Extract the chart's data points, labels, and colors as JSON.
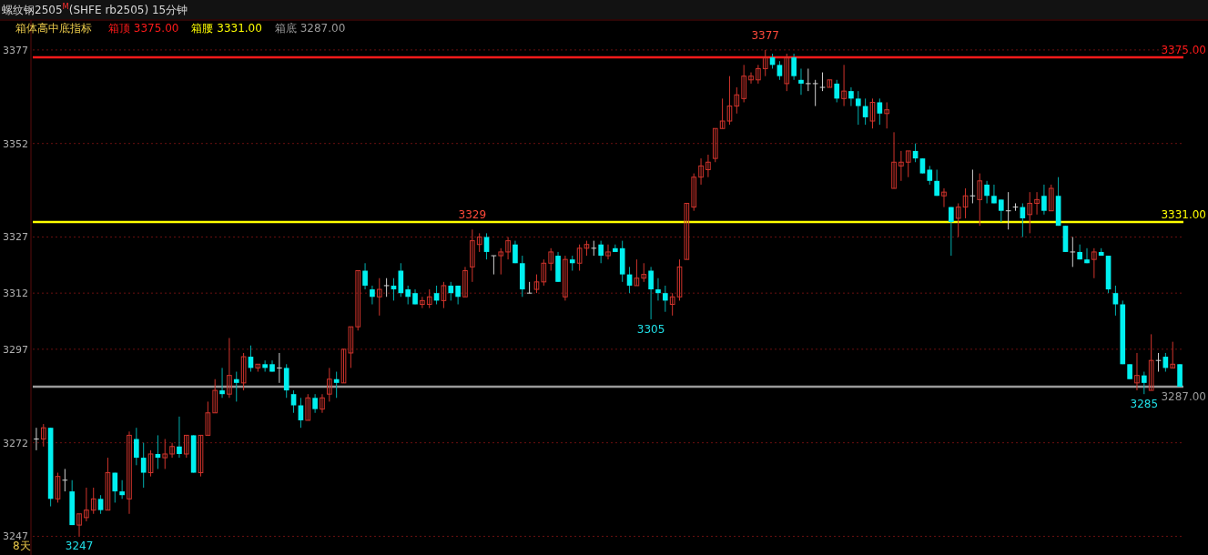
{
  "chart_data": {
    "type": "candlestick",
    "title": "螺纹钢2505$^{M}$(SHFE rb2505)  15分钟",
    "subtitle": "箱体高中底指标",
    "categories": [
      null,
      null,
      null,
      null,
      null,
      null,
      null,
      null,
      null,
      null,
      null,
      null,
      null,
      null,
      null,
      null,
      null,
      null,
      null,
      null,
      null,
      null,
      null,
      null,
      null,
      null,
      null,
      null,
      null,
      null,
      null,
      null,
      null,
      null,
      null,
      null,
      null,
      null,
      null,
      null,
      null,
      null,
      null,
      null,
      null,
      null,
      null,
      null,
      null,
      null,
      null,
      null,
      null,
      null,
      null,
      null,
      null,
      null,
      null,
      null,
      null,
      null,
      null,
      null,
      null,
      null,
      null,
      null,
      null,
      null,
      null,
      null,
      null,
      null,
      null,
      null,
      null,
      null,
      null,
      null,
      null,
      null,
      null,
      null,
      null,
      null,
      null,
      null,
      null,
      null,
      null,
      null,
      null,
      null,
      null,
      null,
      null,
      null,
      null,
      null,
      null,
      null,
      null,
      null,
      null,
      null,
      null,
      null,
      null,
      null,
      null,
      null,
      null,
      null,
      null,
      null,
      null,
      null,
      null,
      null,
      null,
      null,
      null,
      null,
      null,
      null,
      null,
      null,
      null,
      null,
      null,
      null,
      null,
      null,
      null,
      null,
      null,
      null,
      null,
      null,
      null,
      null,
      null,
      null,
      null,
      null,
      null,
      null,
      null,
      null,
      null,
      null,
      null,
      null,
      null,
      null,
      null,
      null,
      null,
      null,
      null
    ],
    "ohlc": [
      [
        3273,
        3276,
        3270,
        3273
      ],
      [
        3273,
        3277,
        3271,
        3276
      ],
      [
        3276,
        3276,
        3255,
        3257
      ],
      [
        3257,
        3264,
        3256,
        3263
      ],
      [
        3262,
        3265,
        3259,
        3262
      ],
      [
        3259,
        3262,
        3250,
        3250
      ],
      [
        3250,
        3253,
        3247,
        3253
      ],
      [
        3252,
        3260,
        3251,
        3254
      ],
      [
        3254,
        3260,
        3253,
        3257
      ],
      [
        3257,
        3258,
        3253,
        3254
      ],
      [
        3254,
        3268,
        3254,
        3264
      ],
      [
        3264,
        3264,
        3256,
        3259
      ],
      [
        3259,
        3262,
        3257,
        3258
      ],
      [
        3257,
        3275,
        3253,
        3274
      ],
      [
        3273,
        3276,
        3266,
        3268
      ],
      [
        3268,
        3272,
        3260,
        3264
      ],
      [
        3264,
        3270,
        3263,
        3269
      ],
      [
        3269,
        3274,
        3265,
        3268
      ],
      [
        3268,
        3273,
        3265,
        3269
      ],
      [
        3269,
        3272,
        3268,
        3271
      ],
      [
        3271,
        3279,
        3268,
        3269
      ],
      [
        3269,
        3274,
        3268,
        3274
      ],
      [
        3274,
        3274,
        3264,
        3264
      ],
      [
        3264,
        3274,
        3263,
        3274
      ],
      [
        3274,
        3283,
        3274,
        3280
      ],
      [
        3280,
        3289,
        3280,
        3286
      ],
      [
        3286,
        3292,
        3284,
        3285
      ],
      [
        3285,
        3300,
        3284,
        3290
      ],
      [
        3289,
        3291,
        3283,
        3288
      ],
      [
        3288,
        3296,
        3286,
        3295
      ],
      [
        3295,
        3298,
        3291,
        3292
      ],
      [
        3292,
        3293,
        3291,
        3293
      ],
      [
        3293,
        3294,
        3291,
        3292
      ],
      [
        3293,
        3294,
        3291,
        3291
      ],
      [
        3292,
        3296,
        3288,
        3292
      ],
      [
        3292,
        3293,
        3284,
        3286
      ],
      [
        3285,
        3286,
        3280,
        3282
      ],
      [
        3282,
        3284,
        3276,
        3278
      ],
      [
        3278,
        3285,
        3278,
        3284
      ],
      [
        3284,
        3285,
        3280,
        3281
      ],
      [
        3281,
        3285,
        3280,
        3284
      ],
      [
        3285,
        3292,
        3283,
        3289
      ],
      [
        3289,
        3291,
        3284,
        3288
      ],
      [
        3288,
        3297,
        3288,
        3297
      ],
      [
        3296,
        3303,
        3292,
        3303
      ],
      [
        3303,
        3318,
        3302,
        3318
      ],
      [
        3318,
        3320,
        3313,
        3314
      ],
      [
        3313,
        3314,
        3309,
        3311
      ],
      [
        3311,
        3316,
        3306,
        3313
      ],
      [
        3314,
        3316,
        3311,
        3314
      ],
      [
        3314,
        3316,
        3310,
        3313
      ],
      [
        3318,
        3320,
        3311,
        3312
      ],
      [
        3313,
        3314,
        3309,
        3311
      ],
      [
        3312,
        3313,
        3309,
        3309
      ],
      [
        3309,
        3311,
        3308,
        3310
      ],
      [
        3309,
        3313,
        3308,
        3311
      ],
      [
        3312,
        3314,
        3309,
        3310
      ],
      [
        3310,
        3315,
        3308,
        3314
      ],
      [
        3314,
        3315,
        3310,
        3312
      ],
      [
        3314,
        3314,
        3309,
        3311
      ],
      [
        3311,
        3319,
        3311,
        3318
      ],
      [
        3319,
        3329,
        3315,
        3326
      ],
      [
        3325,
        3328,
        3323,
        3327
      ],
      [
        3327,
        3328,
        3321,
        3323
      ],
      [
        3322,
        3322,
        3317,
        3322
      ],
      [
        3322,
        3324,
        3317,
        3323
      ],
      [
        3323,
        3327,
        3321,
        3326
      ],
      [
        3325,
        3326,
        3320,
        3320
      ],
      [
        3320,
        3322,
        3311,
        3313
      ],
      [
        3312,
        3315,
        3312,
        3312
      ],
      [
        3313,
        3317,
        3312,
        3315
      ],
      [
        3315,
        3321,
        3314,
        3320
      ],
      [
        3320,
        3324,
        3318,
        3323
      ],
      [
        3322,
        3323,
        3315,
        3315
      ],
      [
        3311,
        3322,
        3310,
        3321
      ],
      [
        3321,
        3322,
        3318,
        3320
      ],
      [
        3320,
        3325,
        3318,
        3324
      ],
      [
        3324,
        3326,
        3322,
        3325
      ],
      [
        3324,
        3326,
        3322,
        3324
      ],
      [
        3325,
        3326,
        3320,
        3322
      ],
      [
        3322,
        3325,
        3321,
        3323
      ],
      [
        3324,
        3325,
        3323,
        3323
      ],
      [
        3324,
        3326,
        3315,
        3317
      ],
      [
        3317,
        3319,
        3312,
        3314
      ],
      [
        3314,
        3321,
        3314,
        3316
      ],
      [
        3316,
        3320,
        3315,
        3317
      ],
      [
        3318,
        3319,
        3305,
        3313
      ],
      [
        3313,
        3316,
        3310,
        3312
      ],
      [
        3312,
        3314,
        3307,
        3310
      ],
      [
        3309,
        3312,
        3306,
        3311
      ],
      [
        3311,
        3321,
        3310,
        3319
      ],
      [
        3321,
        3336,
        3321,
        3336
      ],
      [
        3335,
        3344,
        3334,
        3343
      ],
      [
        3343,
        3348,
        3341,
        3346
      ],
      [
        3345,
        3349,
        3343,
        3347
      ],
      [
        3348,
        3356,
        3347,
        3356
      ],
      [
        3356,
        3364,
        3356,
        3358
      ],
      [
        3358,
        3370,
        3357,
        3362
      ],
      [
        3362,
        3367,
        3360,
        3365
      ],
      [
        3364,
        3373,
        3363,
        3370
      ],
      [
        3369,
        3371,
        3368,
        3370
      ],
      [
        3369,
        3373,
        3368,
        3372
      ],
      [
        3372,
        3377,
        3370,
        3375
      ],
      [
        3375,
        3376,
        3372,
        3373
      ],
      [
        3373,
        3374,
        3369,
        3370
      ],
      [
        3368,
        3376,
        3366,
        3375
      ],
      [
        3375,
        3376,
        3369,
        3370
      ],
      [
        3369,
        3372,
        3365,
        3368
      ],
      [
        3368,
        3372,
        3366,
        3368
      ],
      [
        3368,
        3369,
        3362,
        3368
      ],
      [
        3367,
        3371,
        3366,
        3367
      ],
      [
        3367,
        3369,
        3367,
        3369
      ],
      [
        3368,
        3369,
        3363,
        3364
      ],
      [
        3364,
        3373,
        3362,
        3366
      ],
      [
        3366,
        3367,
        3362,
        3364
      ],
      [
        3364,
        3366,
        3357,
        3362
      ],
      [
        3362,
        3364,
        3357,
        3359
      ],
      [
        3358,
        3364,
        3356,
        3363
      ],
      [
        3363,
        3364,
        3357,
        3360
      ],
      [
        3360,
        3363,
        3356,
        3361
      ],
      [
        3340,
        3355,
        3340,
        3347
      ],
      [
        3346,
        3350,
        3342,
        3347
      ],
      [
        3347,
        3350,
        3343,
        3350
      ],
      [
        3350,
        3352,
        3347,
        3348
      ],
      [
        3348,
        3348,
        3344,
        3344
      ],
      [
        3345,
        3346,
        3341,
        3342
      ],
      [
        3342,
        3345,
        3338,
        3338
      ],
      [
        3338,
        3340,
        3335,
        3339
      ],
      [
        3335,
        3335,
        3322,
        3331
      ],
      [
        3332,
        3336,
        3327,
        3335
      ],
      [
        3335,
        3340,
        3332,
        3338
      ],
      [
        3338,
        3345,
        3336,
        3338
      ],
      [
        3337,
        3344,
        3330,
        3342
      ],
      [
        3341,
        3342,
        3336,
        3338
      ],
      [
        3338,
        3341,
        3336,
        3336
      ],
      [
        3337,
        3337,
        3331,
        3334
      ],
      [
        3334,
        3339,
        3329,
        3334
      ],
      [
        3335,
        3336,
        3334,
        3335
      ],
      [
        3335,
        3336,
        3327,
        3332
      ],
      [
        3333,
        3339,
        3328,
        3336
      ],
      [
        3336,
        3339,
        3333,
        3337
      ],
      [
        3338,
        3341,
        3333,
        3334
      ],
      [
        3334,
        3341,
        3334,
        3340
      ],
      [
        3338,
        3343,
        3330,
        3330
      ],
      [
        3330,
        3330,
        3323,
        3323
      ],
      [
        3323,
        3327,
        3319,
        3323
      ],
      [
        3323,
        3325,
        3321,
        3321
      ],
      [
        3321,
        3324,
        3320,
        3320
      ],
      [
        3321,
        3324,
        3316,
        3323
      ],
      [
        3323,
        3324,
        3322,
        3322
      ],
      [
        3322,
        3322,
        3312,
        3313
      ],
      [
        3312,
        3314,
        3306,
        3309
      ],
      [
        3309,
        3310,
        3293,
        3293
      ],
      [
        3293,
        3293,
        3289,
        3289
      ],
      [
        3288,
        3296,
        3286,
        3290
      ],
      [
        3290,
        3291,
        3285,
        3288
      ],
      [
        3286,
        3301,
        3286,
        3294
      ],
      [
        3294,
        3296,
        3291,
        3294
      ],
      [
        3295,
        3296,
        3291,
        3292
      ],
      [
        3292,
        3299,
        3292,
        3293
      ],
      [
        3293,
        3293,
        3287,
        3287
      ]
    ],
    "ylim": [
      3242,
      3385
    ],
    "yticks": [
      3377,
      3352,
      3327,
      3312,
      3297,
      3272,
      3247
    ],
    "grid": "y",
    "tick_labels": "y",
    "ref_lines": [
      {
        "axis": "y",
        "value": 3375,
        "label": "3375.00",
        "color": "#ff1a1a"
      },
      {
        "axis": "y",
        "value": 3331,
        "label": "3331.00",
        "color": "#ffff00"
      },
      {
        "axis": "y",
        "value": 3287,
        "label": "3287.00",
        "color": "#9a9a9a"
      }
    ],
    "annotations": [
      "箱顶 3375.00",
      "箱腰 3331.00",
      "箱底 3287.00",
      {
        "text": "3377",
        "y": 3377
      },
      {
        "text": "3329",
        "y": 3329
      },
      {
        "text": "3305",
        "y": 3305
      },
      {
        "text": "3285",
        "y": 3285
      },
      {
        "text": "3247",
        "y": 3247
      },
      "8天"
    ]
  }
}
